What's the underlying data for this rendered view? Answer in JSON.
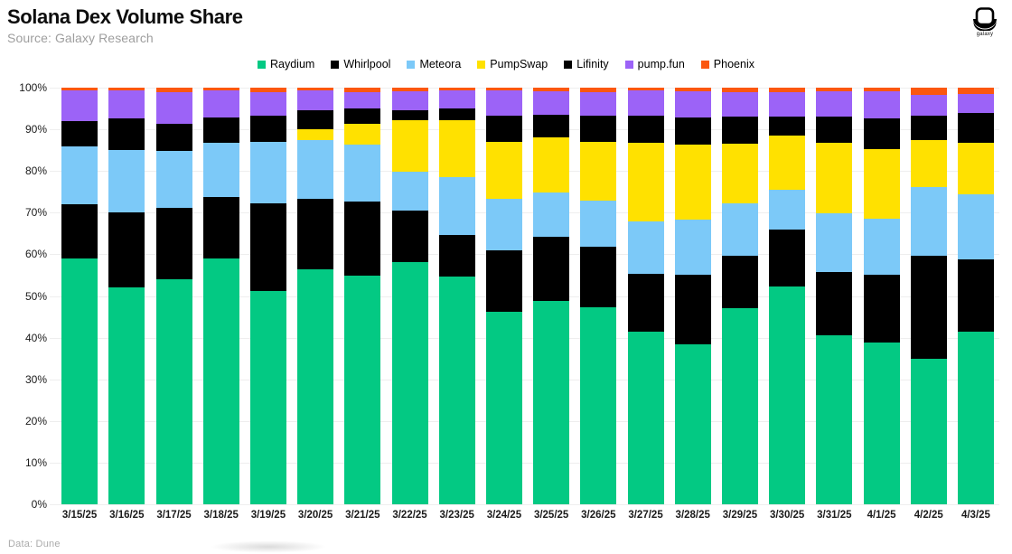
{
  "header": {
    "title": "Solana Dex Volume Share",
    "source": "Source: Galaxy Research",
    "logo_caption": "galaxy"
  },
  "footer": {
    "data_note": "Data: Dune"
  },
  "colors": {
    "raydium_green": "#03C983",
    "whirlpool_black": "#000000",
    "meteora_blue": "#7CC9F8",
    "pumpswap_yellow": "#FFE100",
    "lifinity_black": "#000000",
    "pumpfun_purple": "#9C63F7",
    "phoenix_orange": "#FB570F",
    "gridline": "#EEEEEE"
  },
  "chart_data": {
    "type": "bar",
    "stacked": true,
    "title": "Solana Dex Volume Share",
    "xlabel": "",
    "ylabel": "",
    "ylim": [
      0,
      100
    ],
    "grid": true,
    "legend_position": "top",
    "y_ticks": [
      "0%",
      "10%",
      "20%",
      "30%",
      "40%",
      "50%",
      "60%",
      "70%",
      "80%",
      "90%",
      "100%"
    ],
    "categories": [
      "3/15/25",
      "3/16/25",
      "3/17/25",
      "3/18/25",
      "3/19/25",
      "3/20/25",
      "3/21/25",
      "3/22/25",
      "3/23/25",
      "3/24/25",
      "3/25/25",
      "3/26/25",
      "3/27/25",
      "3/28/25",
      "3/29/25",
      "3/30/25",
      "3/31/25",
      "4/1/25",
      "4/2/25",
      "4/3/25"
    ],
    "series": [
      {
        "name": "Raydium",
        "color": "#03C983",
        "values": [
          59.0,
          52.0,
          54.0,
          59.0,
          51.2,
          56.4,
          54.9,
          58.1,
          54.7,
          46.2,
          48.9,
          47.3,
          41.4,
          38.5,
          47.1,
          52.2,
          40.6,
          38.8,
          34.9,
          41.4
        ]
      },
      {
        "name": "Whirlpool",
        "color": "#000000",
        "values": [
          13.0,
          18.1,
          17.1,
          14.8,
          21.0,
          16.9,
          17.8,
          12.4,
          9.9,
          14.8,
          15.4,
          14.5,
          13.9,
          16.6,
          12.5,
          13.7,
          15.2,
          16.3,
          24.7,
          17.4
        ]
      },
      {
        "name": "Meteora",
        "color": "#7CC9F8",
        "values": [
          14.0,
          14.9,
          13.7,
          13.0,
          14.8,
          14.1,
          13.6,
          9.3,
          13.9,
          12.3,
          10.5,
          11.1,
          12.6,
          13.2,
          12.6,
          9.7,
          14.0,
          13.5,
          16.6,
          15.6
        ]
      },
      {
        "name": "PumpSwap",
        "color": "#FFE100",
        "values": [
          0,
          0,
          0,
          0,
          0,
          2.6,
          5.0,
          12.4,
          13.6,
          13.7,
          13.3,
          14.1,
          18.8,
          18.0,
          14.4,
          12.9,
          17.0,
          16.6,
          11.2,
          12.3
        ]
      },
      {
        "name": "Lifinity",
        "color": "#000000",
        "values": [
          6.0,
          7.6,
          6.5,
          6.0,
          6.3,
          4.6,
          3.7,
          2.4,
          3.0,
          6.3,
          5.4,
          6.2,
          6.6,
          6.5,
          6.5,
          4.5,
          6.2,
          7.5,
          5.8,
          7.2
        ]
      },
      {
        "name": "pump.fun",
        "color": "#9C63F7",
        "values": [
          7.3,
          6.7,
          7.7,
          6.5,
          5.6,
          4.8,
          4.0,
          4.6,
          4.3,
          6.1,
          5.7,
          5.8,
          6.1,
          6.4,
          5.9,
          6.0,
          6.2,
          6.5,
          5.1,
          4.5
        ]
      },
      {
        "name": "Phoenix",
        "color": "#FB570F",
        "values": [
          0.7,
          0.7,
          1.0,
          0.7,
          1.1,
          0.6,
          1.0,
          0.8,
          0.6,
          0.6,
          0.8,
          1.0,
          0.6,
          0.8,
          1.0,
          1.0,
          0.8,
          0.8,
          1.7,
          1.6
        ]
      }
    ]
  }
}
